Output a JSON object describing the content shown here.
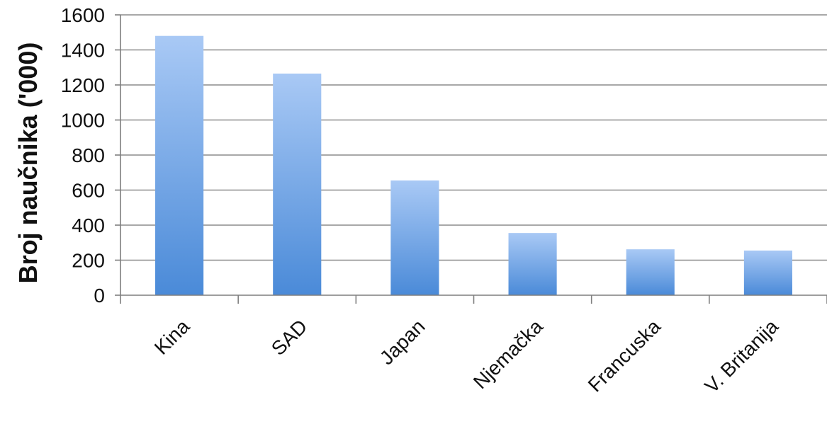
{
  "chart_data": {
    "type": "bar",
    "title": "",
    "xlabel": "",
    "ylabel": "Broj naučnika ('000)",
    "categories": [
      "Kina",
      "SAD",
      "Japan",
      "Njemačka",
      "Francuska",
      "V. Britanija"
    ],
    "values": [
      1480,
      1265,
      655,
      355,
      262,
      255
    ],
    "ylim": [
      0,
      1600
    ],
    "yticks": [
      0,
      200,
      400,
      600,
      800,
      1000,
      1200,
      1400,
      1600
    ],
    "grid": true,
    "legend": "none",
    "colors": {
      "bar_top": "#a9c9f5",
      "bar_bottom": "#4a8ad8",
      "grid": "#8c8c8c",
      "axis": "#7f7f7f",
      "text": "#111111"
    }
  }
}
